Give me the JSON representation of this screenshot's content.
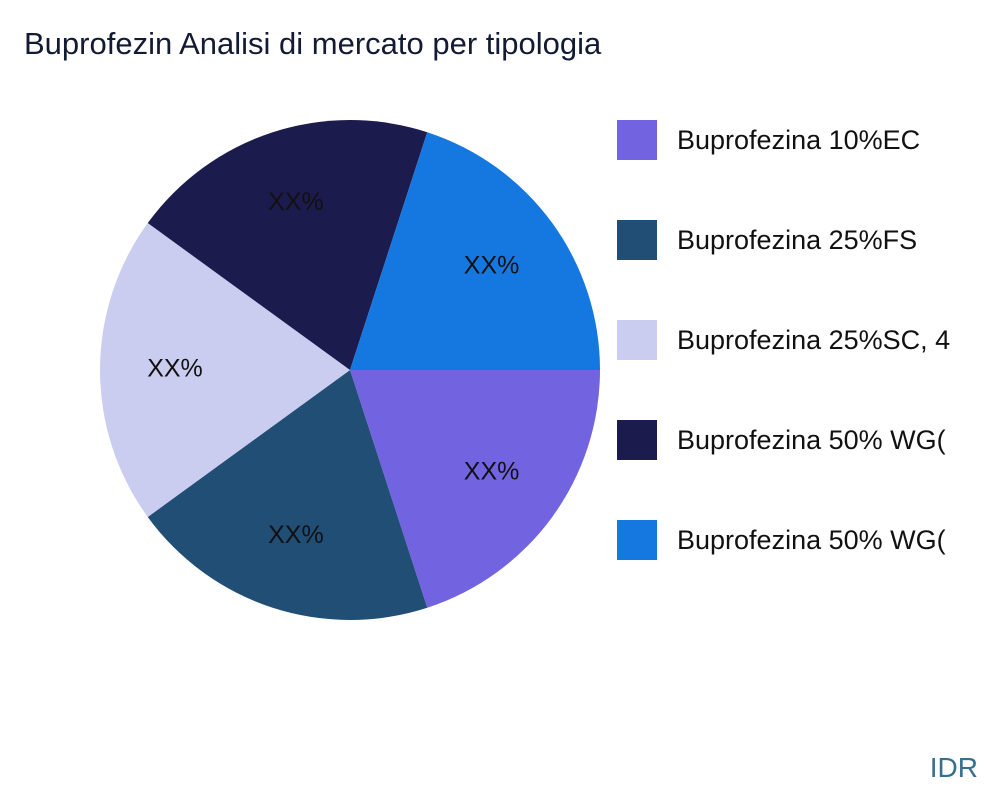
{
  "title": "Buprofezin Analisi di mercato per tipologia",
  "watermark": "IDR",
  "chart_data": {
    "type": "pie",
    "title": "Buprofezin Analisi di mercato per tipologia",
    "labels": [
      "Buprofezina 10%EC",
      "Buprofezina 25%FS",
      "Buprofezina 25%SC, 4",
      "Buprofezina 50% WG(",
      "Buprofezina 50% WG("
    ],
    "values": [
      20,
      20,
      20,
      20,
      20
    ],
    "slice_labels": [
      "XX%",
      "XX%",
      "XX%",
      "XX%",
      "XX%"
    ],
    "colors": [
      "#7264e0",
      "#214e75",
      "#cacdf0",
      "#1c1b4d",
      "#1478e0"
    ],
    "start_angle_deg": 0,
    "direction": "clockwise",
    "legend_position": "right",
    "slice_label_color": "#111111"
  }
}
